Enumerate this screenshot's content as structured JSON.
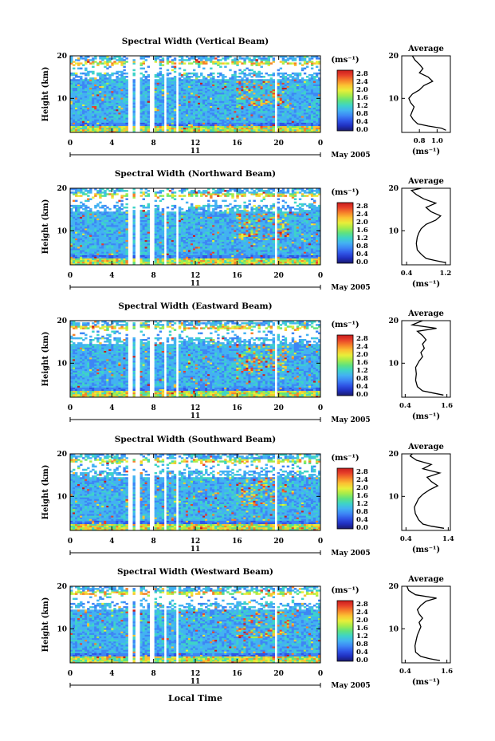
{
  "figure": {
    "month_label": "May 2005",
    "day_label": "11",
    "xlabel": "Local Time",
    "x_ticks": [
      "0",
      "4",
      "8",
      "12",
      "16",
      "20",
      "0"
    ],
    "y_ticks": [
      "20",
      "10"
    ],
    "ylabel": "Height (km)",
    "avg_title": "Average",
    "avg_xlabel": "(ms⁻¹)",
    "colorbar_unit": "(ms⁻¹)",
    "colorbar_ticks": [
      "2.8",
      "2.4",
      "2.0",
      "1.6",
      "1.2",
      "0.8",
      "0.4",
      "0.0"
    ],
    "colormap": [
      "#1a1a6e",
      "#2030c0",
      "#2f55e6",
      "#3d86f5",
      "#43b2f2",
      "#3ed3c8",
      "#5fe27f",
      "#a6ec4a",
      "#e8ee3a",
      "#fbc232",
      "#f6812a",
      "#e8412a",
      "#c91c1c"
    ]
  },
  "chart_data": [
    {
      "type": "heatmap",
      "title": "Spectral Width (Vertical Beam)",
      "x": "Local Time 0–24 h (11 May 2005)",
      "y": "Height 2–20 km",
      "xlim": [
        0,
        24
      ],
      "ylim": [
        2,
        20
      ],
      "clim": [
        0.0,
        3.0
      ],
      "data_gaps_hours": [
        5.8,
        6.4,
        7.9,
        9.1,
        10.3,
        19.7
      ],
      "average_profile": {
        "xlabel": "(ms⁻¹)",
        "x_ticks": [
          "0.8",
          "1.0"
        ],
        "xlim": [
          0.6,
          1.15
        ],
        "points": [
          [
            1.1,
            2.5
          ],
          [
            1.05,
            3.0
          ],
          [
            0.9,
            3.5
          ],
          [
            0.78,
            4.0
          ],
          [
            0.73,
            5
          ],
          [
            0.7,
            6
          ],
          [
            0.72,
            7
          ],
          [
            0.74,
            8
          ],
          [
            0.7,
            9
          ],
          [
            0.68,
            10
          ],
          [
            0.72,
            11
          ],
          [
            0.8,
            12
          ],
          [
            0.85,
            13
          ],
          [
            0.95,
            14
          ],
          [
            0.9,
            15
          ],
          [
            0.8,
            16
          ],
          [
            0.84,
            17
          ],
          [
            0.8,
            18
          ],
          [
            0.75,
            19
          ],
          [
            0.72,
            20
          ]
        ]
      }
    },
    {
      "type": "heatmap",
      "title": "Spectral Width (Northward Beam)",
      "x": "Local Time 0–24 h (11 May 2005)",
      "y": "Height 2–20 km",
      "xlim": [
        0,
        24
      ],
      "ylim": [
        2,
        20
      ],
      "clim": [
        0.0,
        3.0
      ],
      "data_gaps_hours": [
        5.8,
        6.4,
        7.9,
        9.1,
        10.3,
        19.7
      ],
      "average_profile": {
        "xlabel": "(ms⁻¹)",
        "x_ticks": [
          "0.4",
          "1.2"
        ],
        "xlim": [
          0.3,
          1.3
        ],
        "points": [
          [
            1.2,
            2.5
          ],
          [
            1.0,
            3.0
          ],
          [
            0.8,
            3.5
          ],
          [
            0.7,
            4.5
          ],
          [
            0.62,
            5.5
          ],
          [
            0.6,
            7
          ],
          [
            0.62,
            8.5
          ],
          [
            0.65,
            9.5
          ],
          [
            0.7,
            10.5
          ],
          [
            0.8,
            11.5
          ],
          [
            1.0,
            12.5
          ],
          [
            1.1,
            13.5
          ],
          [
            0.9,
            14.5
          ],
          [
            0.8,
            15.5
          ],
          [
            1.0,
            16.5
          ],
          [
            0.75,
            17.5
          ],
          [
            0.6,
            18.5
          ],
          [
            0.5,
            19.5
          ],
          [
            0.7,
            20
          ]
        ]
      }
    },
    {
      "type": "heatmap",
      "title": "Spectral Width (Eastward Beam)",
      "x": "Local Time 0–24 h (11 May 2005)",
      "y": "Height 2–20 km",
      "xlim": [
        0,
        24
      ],
      "ylim": [
        2,
        20
      ],
      "clim": [
        0.0,
        3.0
      ],
      "data_gaps_hours": [
        5.8,
        6.4,
        7.9,
        9.1,
        10.3,
        19.7
      ],
      "average_profile": {
        "xlabel": "(ms⁻¹)",
        "x_ticks": [
          "0.4",
          "1.6"
        ],
        "xlim": [
          0.3,
          1.7
        ],
        "points": [
          [
            1.5,
            2.5
          ],
          [
            1.2,
            3.0
          ],
          [
            0.9,
            3.5
          ],
          [
            0.75,
            4.5
          ],
          [
            0.7,
            6
          ],
          [
            0.72,
            7.5
          ],
          [
            0.7,
            9
          ],
          [
            0.8,
            10.5
          ],
          [
            0.9,
            11.5
          ],
          [
            0.85,
            12.5
          ],
          [
            0.95,
            13.5
          ],
          [
            0.9,
            14.5
          ],
          [
            1.0,
            15.5
          ],
          [
            0.9,
            16.5
          ],
          [
            0.75,
            17.5
          ],
          [
            1.3,
            18.2
          ],
          [
            0.6,
            19
          ],
          [
            0.9,
            20
          ]
        ]
      }
    },
    {
      "type": "heatmap",
      "title": "Spectral Width (Southward Beam)",
      "x": "Local Time 0–24 h (11 May 2005)",
      "y": "Height 2–20 km",
      "xlim": [
        0,
        24
      ],
      "ylim": [
        2,
        20
      ],
      "clim": [
        0.0,
        3.0
      ],
      "data_gaps_hours": [
        5.8,
        6.4,
        7.9,
        9.1,
        10.3,
        19.7
      ],
      "average_profile": {
        "xlabel": "(ms⁻¹)",
        "x_ticks": [
          "0.4",
          "1.4"
        ],
        "xlim": [
          0.3,
          1.45
        ],
        "points": [
          [
            1.3,
            2.5
          ],
          [
            1.0,
            3.0
          ],
          [
            0.8,
            3.5
          ],
          [
            0.7,
            4.5
          ],
          [
            0.62,
            6
          ],
          [
            0.6,
            7.5
          ],
          [
            0.65,
            8.5
          ],
          [
            0.7,
            9.5
          ],
          [
            0.8,
            10.5
          ],
          [
            0.95,
            11.5
          ],
          [
            1.15,
            12.5
          ],
          [
            1.0,
            13.5
          ],
          [
            0.9,
            14.5
          ],
          [
            1.2,
            15.5
          ],
          [
            0.8,
            16.5
          ],
          [
            1.0,
            17.5
          ],
          [
            0.65,
            18.5
          ],
          [
            0.5,
            19.5
          ],
          [
            0.55,
            20
          ]
        ]
      }
    },
    {
      "type": "heatmap",
      "title": "Spectral Width (Westward Beam)",
      "x": "Local Time 0–24 h (11 May 2005)",
      "y": "Height 2–20 km",
      "xlim": [
        0,
        24
      ],
      "ylim": [
        2,
        20
      ],
      "clim": [
        0.0,
        3.0
      ],
      "data_gaps_hours": [
        5.8,
        6.4,
        7.9,
        9.1,
        10.3,
        19.7
      ],
      "average_profile": {
        "xlabel": "(ms⁻¹)",
        "x_ticks": [
          "0.4",
          "1.6"
        ],
        "xlim": [
          0.3,
          1.7
        ],
        "points": [
          [
            1.4,
            2.5
          ],
          [
            1.1,
            3.0
          ],
          [
            0.85,
            3.5
          ],
          [
            0.7,
            4.5
          ],
          [
            0.68,
            6
          ],
          [
            0.72,
            7.5
          ],
          [
            0.75,
            8.5
          ],
          [
            0.8,
            9.5
          ],
          [
            0.85,
            10.5
          ],
          [
            0.8,
            11.5
          ],
          [
            0.9,
            12.5
          ],
          [
            0.8,
            13.5
          ],
          [
            0.75,
            14.5
          ],
          [
            0.85,
            15.5
          ],
          [
            1.0,
            16.5
          ],
          [
            1.3,
            17.2
          ],
          [
            0.7,
            18
          ],
          [
            0.5,
            19
          ],
          [
            0.45,
            20
          ]
        ]
      }
    }
  ]
}
